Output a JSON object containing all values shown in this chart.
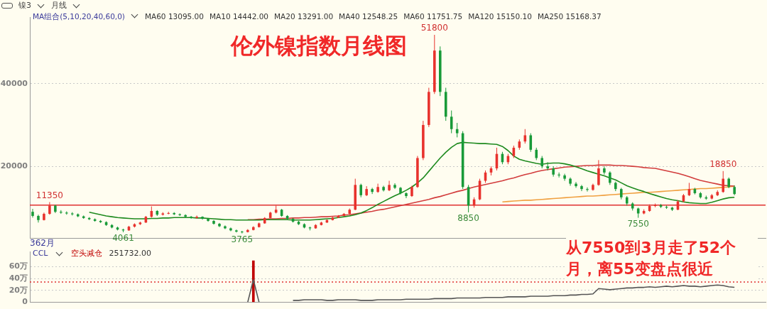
{
  "chart_data": [
    {
      "type": "candlestick",
      "title": "伦外镍指数月线图",
      "categories": [
        null,
        null,
        null,
        null,
        null,
        null,
        null,
        null,
        null,
        null,
        null,
        null,
        null,
        null,
        null,
        null,
        null,
        null,
        null,
        null,
        null,
        null,
        null,
        null,
        null,
        null,
        null,
        null,
        null,
        null,
        null,
        null,
        null,
        null,
        null,
        null,
        null,
        null,
        null,
        null,
        null,
        null,
        null,
        null,
        null,
        null,
        null,
        null,
        null,
        null,
        null,
        null,
        null,
        null,
        null,
        null,
        null,
        null,
        null,
        null,
        null,
        null,
        null,
        null,
        null,
        null,
        null,
        null,
        null,
        null,
        null,
        null,
        null,
        null,
        null,
        null,
        null,
        null,
        null,
        null,
        null,
        null,
        null,
        null,
        null,
        null,
        null,
        null,
        null,
        null,
        null,
        null,
        null,
        null,
        null,
        null,
        null,
        null,
        null,
        null,
        null,
        null,
        null,
        null,
        null,
        null,
        null,
        null,
        null,
        null,
        null,
        null,
        null,
        null,
        null,
        null,
        null,
        null,
        null,
        null,
        null,
        null,
        null,
        null,
        null,
        null,
        null,
        null,
        null,
        null
      ],
      "ohlc": [
        [
          9000,
          9700,
          7600,
          8000
        ],
        [
          8000,
          8300,
          6400,
          7000
        ],
        [
          7000,
          8800,
          6900,
          8500
        ],
        [
          8500,
          11350,
          8300,
          10500
        ],
        [
          10500,
          10700,
          8700,
          9000
        ],
        [
          9000,
          9400,
          8500,
          8800
        ],
        [
          8800,
          9100,
          8300,
          8600
        ],
        [
          8600,
          8900,
          8100,
          8400
        ],
        [
          8400,
          8600,
          7700,
          7900
        ],
        [
          7900,
          8100,
          7300,
          7500
        ],
        [
          7500,
          7700,
          7000,
          7200
        ],
        [
          7200,
          7400,
          6600,
          6800
        ],
        [
          6800,
          7000,
          6300,
          6500
        ],
        [
          6500,
          6700,
          5600,
          5800
        ],
        [
          5800,
          6000,
          5000,
          5200
        ],
        [
          5200,
          5400,
          4500,
          4700
        ],
        [
          4700,
          4900,
          4061,
          4500
        ],
        [
          4500,
          5600,
          4400,
          5400
        ],
        [
          5400,
          6200,
          5200,
          6000
        ],
        [
          6000,
          6600,
          5800,
          6400
        ],
        [
          6400,
          8000,
          6300,
          7800
        ],
        [
          7800,
          10300,
          7600,
          9200
        ],
        [
          9200,
          9400,
          8000,
          8300
        ],
        [
          8300,
          8900,
          8100,
          8600
        ],
        [
          8600,
          9000,
          8400,
          8700
        ],
        [
          8700,
          8900,
          8200,
          8400
        ],
        [
          8400,
          8600,
          8000,
          8200
        ],
        [
          8200,
          8400,
          7600,
          7800
        ],
        [
          7800,
          8000,
          7300,
          7500
        ],
        [
          7500,
          8100,
          7400,
          7800
        ],
        [
          7800,
          7900,
          7100,
          7300
        ],
        [
          7300,
          7500,
          6600,
          6800
        ],
        [
          6800,
          7000,
          5900,
          6100
        ],
        [
          6100,
          6300,
          5300,
          5500
        ],
        [
          5500,
          5700,
          4800,
          5000
        ],
        [
          5000,
          5200,
          4300,
          4500
        ],
        [
          4500,
          4700,
          4000,
          4200
        ],
        [
          4200,
          4400,
          3765,
          4100
        ],
        [
          4100,
          4800,
          4000,
          4600
        ],
        [
          4600,
          5500,
          4500,
          5300
        ],
        [
          5300,
          6400,
          5200,
          6200
        ],
        [
          6200,
          7700,
          6100,
          7500
        ],
        [
          7500,
          9000,
          7400,
          8800
        ],
        [
          8800,
          10500,
          8600,
          9500
        ],
        [
          9500,
          9700,
          7800,
          8000
        ],
        [
          8000,
          8200,
          7100,
          7300
        ],
        [
          7300,
          7500,
          6400,
          6600
        ],
        [
          6600,
          6800,
          5800,
          6000
        ],
        [
          6000,
          6200,
          5000,
          5200
        ],
        [
          5200,
          5400,
          4500,
          5000
        ],
        [
          5000,
          6000,
          4900,
          5800
        ],
        [
          5800,
          6600,
          5700,
          6400
        ],
        [
          6400,
          7200,
          6300,
          7000
        ],
        [
          7000,
          7800,
          6900,
          7600
        ],
        [
          7600,
          8200,
          7500,
          8000
        ],
        [
          8000,
          8700,
          7900,
          8500
        ],
        [
          8500,
          9800,
          8400,
          9500
        ],
        [
          9500,
          17000,
          9400,
          15500
        ],
        [
          15500,
          15800,
          12500,
          13000
        ],
        [
          13000,
          15200,
          12800,
          14500
        ],
        [
          14500,
          14800,
          13300,
          13800
        ],
        [
          13800,
          15800,
          13600,
          15000
        ],
        [
          15000,
          15300,
          13900,
          14200
        ],
        [
          14200,
          16500,
          14000,
          15500
        ],
        [
          15500,
          15900,
          14500,
          14800
        ],
        [
          14800,
          15000,
          13200,
          13500
        ],
        [
          13500,
          13700,
          12300,
          12800
        ],
        [
          12800,
          15300,
          12600,
          15000
        ],
        [
          15000,
          22500,
          14800,
          22000
        ],
        [
          22000,
          31000,
          21500,
          30000
        ],
        [
          30000,
          39000,
          29500,
          38000
        ],
        [
          38000,
          51800,
          37500,
          48000
        ],
        [
          48000,
          49000,
          37000,
          38000
        ],
        [
          38000,
          39000,
          31000,
          32000
        ],
        [
          32000,
          33500,
          28000,
          29000
        ],
        [
          29000,
          30500,
          27000,
          28000
        ],
        [
          28000,
          28500,
          14500,
          15000
        ],
        [
          15000,
          15500,
          8850,
          10500
        ],
        [
          10500,
          12500,
          10000,
          12000
        ],
        [
          12000,
          17000,
          11800,
          16500
        ],
        [
          16500,
          19000,
          16000,
          18500
        ],
        [
          18500,
          20000,
          17800,
          19500
        ],
        [
          19500,
          24500,
          19000,
          23000
        ],
        [
          23000,
          23500,
          20500,
          21000
        ],
        [
          21000,
          23000,
          20500,
          22500
        ],
        [
          22500,
          25000,
          22000,
          24500
        ],
        [
          24500,
          26500,
          24000,
          26000
        ],
        [
          26000,
          29000,
          25500,
          27500
        ],
        [
          27500,
          28000,
          23500,
          24000
        ],
        [
          24000,
          24500,
          21500,
          22000
        ],
        [
          22000,
          22500,
          19500,
          20000
        ],
        [
          20000,
          21000,
          19000,
          19500
        ],
        [
          19500,
          20000,
          17500,
          18000
        ],
        [
          18000,
          18500,
          17300,
          17800
        ],
        [
          17800,
          18200,
          16500,
          17000
        ],
        [
          17000,
          17300,
          15300,
          15800
        ],
        [
          15800,
          16200,
          14800,
          15200
        ],
        [
          15200,
          15500,
          14000,
          14500
        ],
        [
          14500,
          14900,
          13900,
          14300
        ],
        [
          14300,
          15800,
          14100,
          15500
        ],
        [
          15500,
          21500,
          15300,
          19500
        ],
        [
          19500,
          20000,
          18000,
          18500
        ],
        [
          18500,
          18800,
          15500,
          16000
        ],
        [
          16000,
          16300,
          14000,
          14500
        ],
        [
          14500,
          14800,
          12000,
          12500
        ],
        [
          12500,
          12800,
          10500,
          11000
        ],
        [
          11000,
          11300,
          9300,
          9800
        ],
        [
          9800,
          10000,
          7550,
          8600
        ],
        [
          8600,
          9600,
          8400,
          9200
        ],
        [
          9200,
          10800,
          9000,
          10400
        ],
        [
          10400,
          11000,
          10100,
          10600
        ],
        [
          10600,
          10900,
          9900,
          10200
        ],
        [
          10200,
          10500,
          9700,
          10000
        ],
        [
          10000,
          10200,
          9200,
          9500
        ],
        [
          9500,
          11800,
          9400,
          11500
        ],
        [
          11500,
          13300,
          11300,
          13000
        ],
        [
          13000,
          16000,
          12800,
          14500
        ],
        [
          14500,
          14800,
          13200,
          13500
        ],
        [
          13500,
          13800,
          12200,
          12500
        ],
        [
          12500,
          12900,
          11900,
          12200
        ],
        [
          12200,
          13300,
          12000,
          13000
        ],
        [
          13000,
          14200,
          12800,
          13800
        ],
        [
          13800,
          18850,
          13600,
          17000
        ],
        [
          17000,
          17300,
          14700,
          15000
        ],
        [
          15000,
          15400,
          13000,
          13300
        ],
        null,
        null,
        null,
        null,
        null
      ],
      "series": [
        {
          "type": "line",
          "color": "#1e8a1e",
          "values": [
            null,
            null,
            null,
            null,
            null,
            null,
            null,
            null,
            null,
            null,
            8900,
            8600,
            8300,
            8000,
            7800,
            7600,
            7500,
            7400,
            7300,
            7300,
            7300,
            7400,
            7400,
            7500,
            7500,
            7600,
            7600,
            7600,
            7600,
            7500,
            7500,
            7400,
            7300,
            7200,
            7100,
            7100,
            7000,
            7000,
            7000,
            7000,
            7000,
            7100,
            7100,
            7100,
            7100,
            7100,
            7000,
            7000,
            7000,
            7000,
            7100,
            7200,
            7300,
            7400,
            7600,
            7800,
            8000,
            8300,
            8700,
            9300,
            10000,
            10800,
            11500,
            12200,
            12900,
            13500,
            14200,
            15000,
            16000,
            17200,
            18800,
            20400,
            22000,
            23400,
            24600,
            25500,
            25800,
            25700,
            25600,
            25500,
            25500,
            25400,
            25300,
            24800,
            23800,
            22500,
            21700,
            21300,
            21000,
            20700,
            20500,
            20700,
            20800,
            20800,
            20600,
            20300,
            19900,
            19400,
            18900,
            18500,
            18100,
            17700,
            17200,
            16700,
            16000,
            15300,
            14800,
            14300,
            13900,
            13400,
            13000,
            12600,
            12200,
            11900,
            11700,
            11400,
            11200,
            11100,
            11000,
            11000,
            11300,
            11700,
            12100,
            12400,
            12500,
            null,
            null,
            null,
            null,
            null
          ]
        },
        {
          "type": "line",
          "color": "#d23c3c",
          "values": [
            null,
            null,
            null,
            null,
            null,
            null,
            null,
            null,
            null,
            null,
            null,
            null,
            null,
            null,
            null,
            null,
            null,
            null,
            null,
            null,
            null,
            null,
            null,
            null,
            null,
            null,
            null,
            null,
            null,
            null,
            null,
            null,
            null,
            null,
            null,
            null,
            null,
            null,
            7100,
            7100,
            7200,
            7200,
            7300,
            7300,
            7400,
            7400,
            7500,
            7500,
            7600,
            7600,
            7700,
            7800,
            7800,
            7900,
            8000,
            8200,
            8300,
            8500,
            8700,
            8900,
            9100,
            9400,
            9600,
            9900,
            10200,
            10500,
            10800,
            11100,
            11400,
            11700,
            12000,
            12400,
            12700,
            13100,
            13500,
            13900,
            14200,
            14600,
            15000,
            15300,
            15600,
            15900,
            16200,
            16500,
            16900,
            17200,
            17600,
            18000,
            18300,
            18700,
            19000,
            19200,
            19400,
            19600,
            19800,
            19900,
            20000,
            20100,
            20200,
            20200,
            20300,
            20300,
            20300,
            20200,
            20200,
            20100,
            20000,
            19900,
            19700,
            19600,
            19500,
            19200,
            18900,
            18600,
            18300,
            17900,
            17500,
            17000,
            16600,
            16300,
            16000,
            15700,
            15400,
            15300,
            15200,
            null,
            null,
            null,
            null,
            null
          ]
        },
        {
          "type": "line",
          "color": "#f0a040",
          "values": [
            null,
            null,
            null,
            null,
            null,
            null,
            null,
            null,
            null,
            null,
            null,
            null,
            null,
            null,
            null,
            null,
            null,
            null,
            null,
            null,
            null,
            null,
            null,
            null,
            null,
            null,
            null,
            null,
            null,
            null,
            null,
            null,
            null,
            null,
            null,
            null,
            null,
            null,
            null,
            null,
            null,
            null,
            null,
            null,
            null,
            null,
            null,
            null,
            null,
            null,
            null,
            null,
            null,
            null,
            null,
            null,
            null,
            null,
            null,
            null,
            null,
            null,
            null,
            null,
            null,
            null,
            null,
            null,
            null,
            null,
            null,
            null,
            null,
            null,
            null,
            null,
            null,
            null,
            null,
            null,
            null,
            null,
            null,
            11400,
            11500,
            11600,
            11700,
            11800,
            11800,
            11900,
            12000,
            12100,
            12200,
            12300,
            12400,
            12500,
            12600,
            12700,
            12800,
            12800,
            12900,
            13000,
            13100,
            13200,
            13300,
            13400,
            13500,
            13600,
            13700,
            13700,
            13800,
            13900,
            14000,
            14100,
            14200,
            14300,
            14400,
            14500,
            14600,
            14600,
            14700,
            14800,
            14900,
            15000,
            15200,
            null,
            null,
            null,
            null,
            null
          ]
        }
      ],
      "ylim": [
        2600,
        56000
      ],
      "yticks": [
        20000,
        40000
      ],
      "grid": "y",
      "legend": false,
      "marker": "none",
      "tick_labels": "y",
      "ref_lines": [
        {
          "axis": "y",
          "value": 10600,
          "color": "#e03030"
        }
      ],
      "annotations": [
        "镍3",
        "月线",
        "MA组合(5,10,20,40,60,0)",
        "MA60 13095.00",
        "MA10 14442.00",
        "MA20 13291.00",
        "MA40 12548.25",
        "MA60 11751.75",
        "MA120 15150.10",
        "MA250 15168.37",
        "362月",
        "从7550到3月走了52个月，离55变盘点很近",
        {
          "text": "11350",
          "y": 11350
        },
        {
          "text": "4061",
          "y": 4061
        },
        {
          "text": "3765",
          "y": 3765
        },
        {
          "text": "51800",
          "y": 51800
        },
        {
          "text": "8850",
          "y": 8850
        },
        {
          "text": "7550",
          "y": 7550
        },
        {
          "text": "18850",
          "y": 18850
        }
      ]
    },
    {
      "type": "line",
      "categories": [
        null,
        null,
        null,
        null,
        null,
        null,
        null,
        null,
        null,
        null,
        null,
        null,
        null,
        null,
        null,
        null,
        null,
        null,
        null,
        null,
        null,
        null,
        null,
        null,
        null,
        null,
        null,
        null,
        null,
        null,
        null,
        null,
        null,
        null,
        null,
        null,
        null,
        null,
        null,
        null,
        null,
        null,
        null,
        null,
        null,
        null,
        null,
        null,
        null,
        null,
        null,
        null,
        null,
        null,
        null,
        null,
        null,
        null,
        null,
        null,
        null,
        null,
        null,
        null,
        null,
        null,
        null,
        null,
        null,
        null,
        null,
        null,
        null,
        null,
        null,
        null,
        null,
        null,
        null,
        null,
        null,
        null,
        null,
        null,
        null,
        null,
        null,
        null,
        null,
        null,
        null,
        null,
        null,
        null,
        null,
        null,
        null,
        null,
        null,
        null,
        null,
        null,
        null,
        null,
        null,
        null,
        null,
        null,
        null,
        null,
        null,
        null,
        null,
        null,
        null,
        null,
        null,
        null,
        null,
        null,
        null,
        null,
        null,
        null,
        null,
        null,
        null,
        null,
        null,
        null
      ],
      "series": [
        {
          "type": "line",
          "color": "#555555",
          "values": [
            null,
            null,
            null,
            null,
            null,
            null,
            null,
            null,
            null,
            null,
            null,
            null,
            null,
            null,
            null,
            null,
            null,
            null,
            null,
            null,
            null,
            null,
            null,
            null,
            null,
            null,
            null,
            null,
            null,
            null,
            null,
            null,
            null,
            null,
            null,
            null,
            null,
            null,
            0,
            38,
            0,
            null,
            null,
            null,
            null,
            null,
            3,
            3,
            4,
            4,
            4,
            4,
            3,
            3,
            4,
            4,
            4,
            4,
            3,
            3,
            3,
            4,
            4,
            4,
            4,
            4,
            5,
            5,
            5,
            5,
            5,
            6,
            6,
            6,
            6,
            7,
            7,
            7,
            7,
            7,
            8,
            8,
            8,
            8,
            9,
            9,
            9,
            9,
            10,
            10,
            10,
            10,
            11,
            11,
            11,
            12,
            12,
            13,
            13,
            14,
            23,
            22,
            21,
            22,
            23,
            24,
            24,
            25,
            25,
            26,
            25,
            26,
            27,
            26,
            27,
            28,
            27,
            27,
            26,
            27,
            28,
            29,
            28,
            26,
            25,
            null,
            null,
            null,
            null,
            null
          ]
        },
        {
          "type": "bar",
          "name": "空头减仓",
          "color": "#c00000",
          "values": [
            null,
            null,
            null,
            null,
            null,
            null,
            null,
            null,
            null,
            null,
            null,
            null,
            null,
            null,
            null,
            null,
            null,
            null,
            null,
            null,
            null,
            null,
            null,
            null,
            null,
            null,
            null,
            null,
            null,
            null,
            null,
            null,
            null,
            null,
            null,
            null,
            null,
            null,
            null,
            70,
            null,
            null,
            null,
            null,
            null,
            null,
            null,
            null,
            null,
            null,
            null,
            null,
            null,
            null,
            null,
            null,
            null,
            null,
            null,
            null,
            null,
            null,
            null,
            null,
            null,
            null,
            null,
            null,
            null,
            null,
            null,
            null,
            null,
            null,
            null,
            null,
            null,
            null,
            null,
            null,
            null,
            null,
            null,
            null,
            null,
            null,
            null,
            null,
            null,
            null,
            null,
            null,
            null,
            null,
            null,
            null,
            null,
            null,
            null,
            null,
            null,
            null,
            null,
            null,
            null,
            null,
            null,
            null,
            null,
            null,
            null,
            null,
            null,
            null,
            null,
            null,
            null,
            null,
            null,
            null,
            null,
            null,
            null,
            null,
            null,
            null,
            null,
            null,
            null,
            null
          ]
        }
      ],
      "ylim": [
        0,
        85
      ],
      "yticks": [
        {
          "value": 0,
          "label": "0"
        },
        {
          "value": 20,
          "label": "20万"
        },
        {
          "value": 40,
          "label": "40万"
        },
        {
          "value": 60,
          "label": "60万"
        }
      ],
      "grid": "y",
      "legend": false,
      "marker": "none",
      "tick_labels": "y",
      "ref_lines": [
        {
          "axis": "y",
          "value": 34,
          "color": "#e03030",
          "line_style": "dotted"
        }
      ],
      "annotations": [
        "CCL",
        "251732.00"
      ]
    }
  ]
}
